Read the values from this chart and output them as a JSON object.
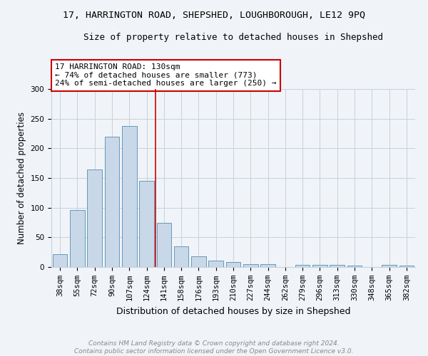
{
  "title": "17, HARRINGTON ROAD, SHEPSHED, LOUGHBOROUGH, LE12 9PQ",
  "subtitle": "Size of property relative to detached houses in Shepshed",
  "xlabel": "Distribution of detached houses by size in Shepshed",
  "ylabel": "Number of detached properties",
  "categories": [
    "38sqm",
    "55sqm",
    "72sqm",
    "90sqm",
    "107sqm",
    "124sqm",
    "141sqm",
    "158sqm",
    "176sqm",
    "193sqm",
    "210sqm",
    "227sqm",
    "244sqm",
    "262sqm",
    "279sqm",
    "296sqm",
    "313sqm",
    "330sqm",
    "348sqm",
    "365sqm",
    "382sqm"
  ],
  "values": [
    22,
    96,
    165,
    220,
    238,
    145,
    74,
    35,
    18,
    11,
    9,
    5,
    5,
    0,
    4,
    4,
    4,
    2,
    0,
    4,
    2
  ],
  "bar_color": "#c8d8e8",
  "bar_edge_color": "#6699bb",
  "vline_x": 5.5,
  "vline_color": "#cc0000",
  "annotation_text": "17 HARRINGTON ROAD: 130sqm\n← 74% of detached houses are smaller (773)\n24% of semi-detached houses are larger (250) →",
  "annotation_box_color": "white",
  "annotation_box_edge_color": "#cc0000",
  "ylim": [
    0,
    300
  ],
  "yticks": [
    0,
    50,
    100,
    150,
    200,
    250,
    300
  ],
  "background_color": "#f0f4f8",
  "grid_color": "#c8d0dc",
  "footer_line1": "Contains HM Land Registry data © Crown copyright and database right 2024.",
  "footer_line2": "Contains public sector information licensed under the Open Government Licence v3.0.",
  "title_fontsize": 9.5,
  "subtitle_fontsize": 9,
  "xlabel_fontsize": 9,
  "ylabel_fontsize": 8.5,
  "tick_fontsize": 7.5,
  "annotation_fontsize": 8,
  "footer_fontsize": 6.5
}
